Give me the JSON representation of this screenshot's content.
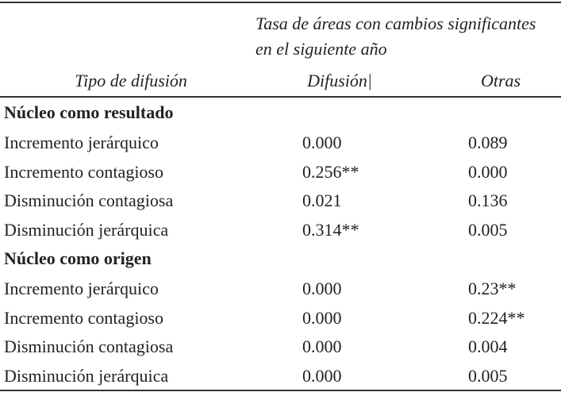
{
  "header": {
    "group_title": [
      "Tasa de áreas con cambios significantes",
      "en el siguiente año"
    ],
    "columns": [
      "Tipo de difusión",
      "Difusión|",
      "Otras"
    ]
  },
  "sections": [
    {
      "title": "Núcleo como resultado",
      "rows": [
        [
          "Incremento jerárquico",
          "0.000",
          "0.089"
        ],
        [
          "Incremento contagioso",
          "0.256**",
          "0.000"
        ],
        [
          "Disminución contagiosa",
          "0.021",
          "0.136"
        ],
        [
          "Disminución jerárquica",
          "0.314**",
          "0.005"
        ]
      ]
    },
    {
      "title": "Núcleo como origen",
      "rows": [
        [
          "Incremento jerárquico",
          "0.000",
          "0.23**"
        ],
        [
          "Incremento contagioso",
          "0.000",
          "0.224**"
        ],
        [
          "Disminución contagiosa",
          "0.000",
          "0.004"
        ],
        [
          "Disminución jerárquica",
          "0.000",
          "0.005"
        ]
      ]
    }
  ]
}
